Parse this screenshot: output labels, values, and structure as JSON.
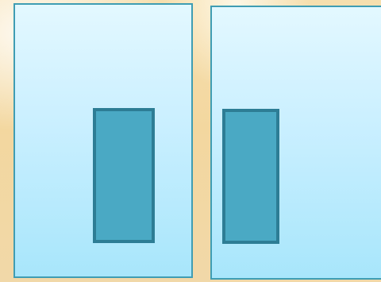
{
  "scene": {
    "panels": [
      {
        "id": "left",
        "slot": "filled"
      },
      {
        "id": "right",
        "slot": "filled"
      }
    ],
    "colors": {
      "background": "#f3d79f",
      "panel_fill_top": "#e3f8ff",
      "panel_fill_bottom": "#a8e6fb",
      "panel_border": "#3f9db3",
      "slot_fill": "#4aa9c4",
      "slot_border": "#2d7d95"
    }
  }
}
